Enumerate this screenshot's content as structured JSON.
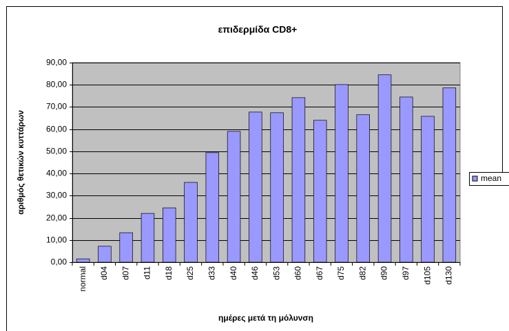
{
  "chart_data": {
    "type": "bar",
    "title": "επιδερμίδα CD8+",
    "x_label": "ημέρες μετά τη μόλυνση",
    "y_label": "αριθμός θετικών κυττάρων",
    "categories": [
      "normal",
      "d04",
      "d07",
      "d11",
      "d18",
      "d25",
      "d33",
      "d40",
      "d46",
      "d53",
      "d60",
      "d67",
      "d75",
      "d82",
      "d90",
      "d97",
      "d105",
      "d130"
    ],
    "series": [
      {
        "name": "mean",
        "color": "#9999ff",
        "values": [
          1.5,
          7.2,
          13.3,
          22.0,
          24.5,
          36.0,
          49.4,
          59.0,
          67.7,
          67.4,
          74.2,
          64.0,
          80.1,
          66.5,
          84.5,
          74.5,
          65.8,
          78.6
        ]
      }
    ],
    "ylim": [
      0,
      90
    ],
    "yticks": [
      {
        "value": 0,
        "label": "0,00"
      },
      {
        "value": 10,
        "label": "10,00"
      },
      {
        "value": 20,
        "label": "20,00"
      },
      {
        "value": 30,
        "label": "30,00"
      },
      {
        "value": 40,
        "label": "40,00"
      },
      {
        "value": 50,
        "label": "50,00"
      },
      {
        "value": 60,
        "label": "60,00"
      },
      {
        "value": 70,
        "label": "70,00"
      },
      {
        "value": 80,
        "label": "80,00"
      },
      {
        "value": 90,
        "label": "90,00"
      }
    ],
    "grid": true,
    "legend": "right"
  }
}
